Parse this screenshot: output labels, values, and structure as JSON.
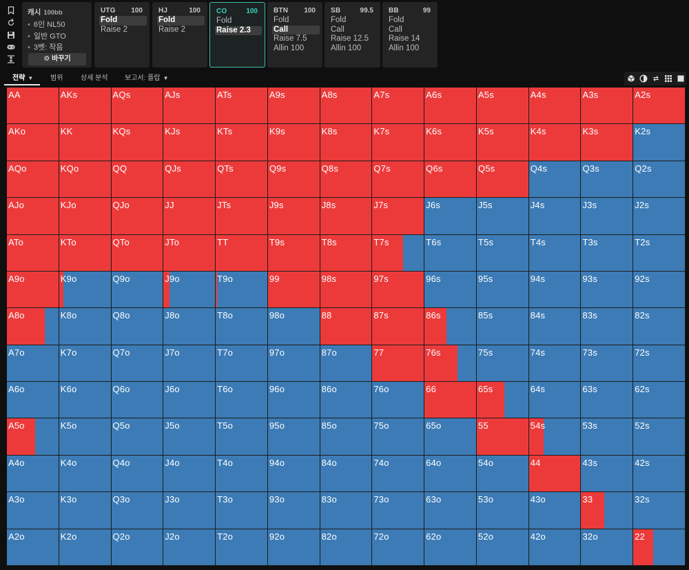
{
  "sidebar": {
    "icons": [
      "bookmark-icon",
      "refresh-icon",
      "save-icon",
      "gamepad-icon",
      "compress-icon"
    ]
  },
  "game": {
    "title": "캐시",
    "stack": "100bb",
    "info": [
      "6인 NL50",
      "일반 GTO",
      "3벳: 작음"
    ],
    "change_button": "바꾸기",
    "change_icon": "gear-icon"
  },
  "positions": [
    {
      "name": "UTG",
      "stack": "100",
      "active": false,
      "actions": [
        {
          "label": "Fold",
          "selected": true
        },
        {
          "label": "Raise 2",
          "selected": false
        }
      ]
    },
    {
      "name": "HJ",
      "stack": "100",
      "active": false,
      "actions": [
        {
          "label": "Fold",
          "selected": true
        },
        {
          "label": "Raise 2",
          "selected": false
        }
      ]
    },
    {
      "name": "CO",
      "stack": "100",
      "active": true,
      "actions": [
        {
          "label": "Fold",
          "selected": false
        },
        {
          "label": "Raise 2.3",
          "selected": true
        }
      ]
    },
    {
      "name": "BTN",
      "stack": "100",
      "active": false,
      "actions": [
        {
          "label": "Fold",
          "selected": false
        },
        {
          "label": "Call",
          "selected": true
        },
        {
          "label": "Raise 7.5",
          "selected": false
        },
        {
          "label": "Allin 100",
          "selected": false
        }
      ]
    },
    {
      "name": "SB",
      "stack": "99.5",
      "active": false,
      "actions": [
        {
          "label": "Fold",
          "selected": false
        },
        {
          "label": "Call",
          "selected": false
        },
        {
          "label": "Raise 12.5",
          "selected": false
        },
        {
          "label": "Allin 100",
          "selected": false
        }
      ]
    },
    {
      "name": "BB",
      "stack": "99",
      "active": false,
      "actions": [
        {
          "label": "Fold",
          "selected": false
        },
        {
          "label": "Call",
          "selected": false
        },
        {
          "label": "Raise 14",
          "selected": false
        },
        {
          "label": "Allin 100",
          "selected": false
        }
      ]
    }
  ],
  "tabs": [
    {
      "label": "전략",
      "active": true,
      "dropdown": true
    },
    {
      "label": "범위",
      "active": false,
      "dropdown": false
    },
    {
      "label": "상세 분석",
      "active": false,
      "dropdown": false
    },
    {
      "label": "보고서: 플랍",
      "active": false,
      "dropdown": true
    }
  ],
  "view_buttons": [
    "cube-icon",
    "half-circle-icon",
    "arrows-icon",
    "grid-icon",
    "square-icon"
  ],
  "colors": {
    "raise": "#ec3a3b",
    "fold": "#3c7bb5",
    "accent": "#3fbfae"
  },
  "hands": [
    [
      "AA",
      "AKs",
      "AQs",
      "AJs",
      "ATs",
      "A9s",
      "A8s",
      "A7s",
      "A6s",
      "A5s",
      "A4s",
      "A3s",
      "A2s"
    ],
    [
      "AKo",
      "KK",
      "KQs",
      "KJs",
      "KTs",
      "K9s",
      "K8s",
      "K7s",
      "K6s",
      "K5s",
      "K4s",
      "K3s",
      "K2s"
    ],
    [
      "AQo",
      "KQo",
      "QQ",
      "QJs",
      "QTs",
      "Q9s",
      "Q8s",
      "Q7s",
      "Q6s",
      "Q5s",
      "Q4s",
      "Q3s",
      "Q2s"
    ],
    [
      "AJo",
      "KJo",
      "QJo",
      "JJ",
      "JTs",
      "J9s",
      "J8s",
      "J7s",
      "J6s",
      "J5s",
      "J4s",
      "J3s",
      "J2s"
    ],
    [
      "ATo",
      "KTo",
      "QTo",
      "JTo",
      "TT",
      "T9s",
      "T8s",
      "T7s",
      "T6s",
      "T5s",
      "T4s",
      "T3s",
      "T2s"
    ],
    [
      "A9o",
      "K9o",
      "Q9o",
      "J9o",
      "T9o",
      "99",
      "98s",
      "97s",
      "96s",
      "95s",
      "94s",
      "93s",
      "92s"
    ],
    [
      "A8o",
      "K8o",
      "Q8o",
      "J8o",
      "T8o",
      "98o",
      "88",
      "87s",
      "86s",
      "85s",
      "84s",
      "83s",
      "82s"
    ],
    [
      "A7o",
      "K7o",
      "Q7o",
      "J7o",
      "T7o",
      "97o",
      "87o",
      "77",
      "76s",
      "75s",
      "74s",
      "73s",
      "72s"
    ],
    [
      "A6o",
      "K6o",
      "Q6o",
      "J6o",
      "T6o",
      "96o",
      "86o",
      "76o",
      "66",
      "65s",
      "64s",
      "63s",
      "62s"
    ],
    [
      "A5o",
      "K5o",
      "Q5o",
      "J5o",
      "T5o",
      "95o",
      "85o",
      "75o",
      "65o",
      "55",
      "54s",
      "53s",
      "52s"
    ],
    [
      "A4o",
      "K4o",
      "Q4o",
      "J4o",
      "T4o",
      "94o",
      "84o",
      "74o",
      "64o",
      "54o",
      "44",
      "43s",
      "42s"
    ],
    [
      "A3o",
      "K3o",
      "Q3o",
      "J3o",
      "T3o",
      "93o",
      "83o",
      "73o",
      "63o",
      "53o",
      "43o",
      "33",
      "32s"
    ],
    [
      "A2o",
      "K2o",
      "Q2o",
      "J2o",
      "T2o",
      "92o",
      "82o",
      "72o",
      "62o",
      "52o",
      "42o",
      "32o",
      "22"
    ]
  ],
  "raise_freq": [
    [
      1,
      1,
      1,
      1,
      1,
      1,
      1,
      1,
      1,
      1,
      1,
      1,
      1
    ],
    [
      1,
      1,
      1,
      1,
      1,
      1,
      1,
      1,
      1,
      1,
      1,
      1,
      0
    ],
    [
      1,
      1,
      1,
      1,
      1,
      1,
      1,
      1,
      1,
      1,
      0,
      0,
      0
    ],
    [
      1,
      1,
      1,
      1,
      1,
      1,
      1,
      1,
      0,
      0,
      0,
      0,
      0
    ],
    [
      1,
      1,
      1,
      1,
      1,
      1,
      1,
      0.6,
      0,
      0,
      0,
      0,
      0
    ],
    [
      1,
      0.08,
      0,
      0.12,
      0.03,
      1,
      1,
      1,
      0,
      0,
      0,
      0,
      0
    ],
    [
      0.73,
      0,
      0,
      0,
      0,
      0,
      1,
      1,
      0.43,
      0,
      0,
      0,
      0
    ],
    [
      0,
      0,
      0,
      0,
      0,
      0,
      0,
      1,
      0.64,
      0,
      0,
      0,
      0
    ],
    [
      0,
      0,
      0,
      0,
      0,
      0,
      0,
      0,
      1,
      0.53,
      0,
      0,
      0
    ],
    [
      0.55,
      0,
      0,
      0,
      0,
      0,
      0,
      0,
      0,
      1,
      0.28,
      0,
      0
    ],
    [
      0,
      0,
      0,
      0,
      0,
      0,
      0,
      0,
      0,
      0,
      1,
      0,
      0
    ],
    [
      0,
      0,
      0,
      0,
      0,
      0,
      0,
      0,
      0,
      0,
      0,
      0.45,
      0
    ],
    [
      0,
      0,
      0,
      0,
      0,
      0,
      0,
      0,
      0,
      0,
      0,
      0,
      0.38
    ]
  ]
}
